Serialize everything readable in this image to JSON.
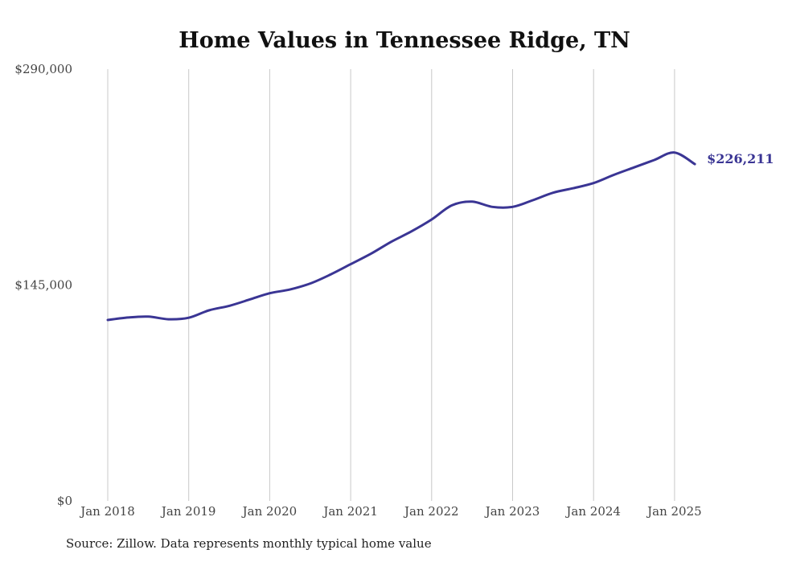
{
  "chart_data": {
    "type": "line",
    "title": "Home Values in Tennessee Ridge, TN",
    "xlabel": "",
    "ylabel": "",
    "ylim": [
      0,
      290000
    ],
    "y_ticks": [
      {
        "value": 0,
        "label": "$0"
      },
      {
        "value": 145000,
        "label": "$145,000"
      },
      {
        "value": 290000,
        "label": "$290,000"
      }
    ],
    "x_ticks": [
      {
        "value": 2018,
        "label": "Jan 2018"
      },
      {
        "value": 2019,
        "label": "Jan 2019"
      },
      {
        "value": 2020,
        "label": "Jan 2020"
      },
      {
        "value": 2021,
        "label": "Jan 2021"
      },
      {
        "value": 2022,
        "label": "Jan 2022"
      },
      {
        "value": 2023,
        "label": "Jan 2023"
      },
      {
        "value": 2024,
        "label": "Jan 2024"
      },
      {
        "value": 2025,
        "label": "Jan 2025"
      }
    ],
    "grid": "vertical",
    "line_color": "#3a3594",
    "end_label": "$226,211",
    "series": [
      {
        "x": [
          "2018-01",
          "2018-04",
          "2018-07",
          "2018-10",
          "2019-01",
          "2019-04",
          "2019-07",
          "2019-10",
          "2020-01",
          "2020-04",
          "2020-07",
          "2020-10",
          "2021-01",
          "2021-04",
          "2021-07",
          "2021-10",
          "2022-01",
          "2022-04",
          "2022-07",
          "2022-10",
          "2023-01",
          "2023-04",
          "2023-07",
          "2023-10",
          "2024-01",
          "2024-04",
          "2024-07",
          "2024-10",
          "2025-01",
          "2025-04"
        ],
        "values": [
          121500,
          123200,
          123800,
          122000,
          123000,
          128000,
          131000,
          135200,
          139500,
          142000,
          146000,
          152000,
          159000,
          166000,
          174000,
          181000,
          189000,
          198500,
          201000,
          197500,
          197500,
          202000,
          207000,
          210000,
          213500,
          219000,
          224000,
          229000,
          234000,
          226211
        ]
      }
    ]
  },
  "footer": {
    "source": "Source: Zillow. Data represents monthly typical home value"
  }
}
